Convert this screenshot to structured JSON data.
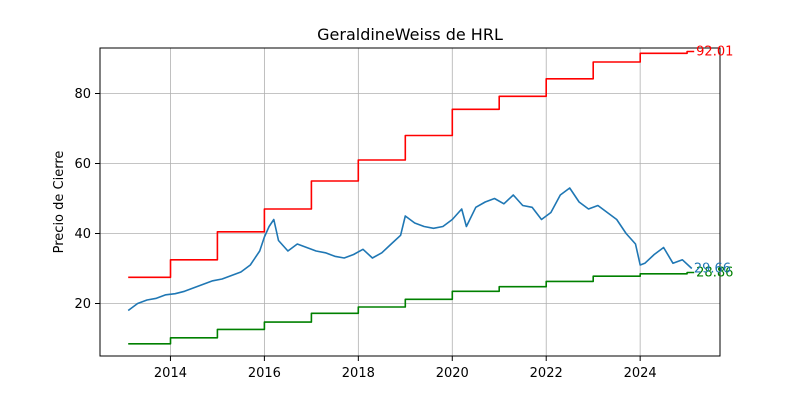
{
  "chart_data": {
    "type": "line",
    "title": "GeraldineWeiss de HRL",
    "xlabel": "",
    "ylabel": "Precio de Cierre",
    "xlim": [
      2012.5,
      2025.7
    ],
    "ylim": [
      5,
      93
    ],
    "x_ticks": [
      2014,
      2016,
      2018,
      2020,
      2022,
      2024
    ],
    "x_tick_labels": [
      "2014",
      "2016",
      "2018",
      "2020",
      "2022",
      "2024"
    ],
    "y_ticks": [
      20,
      40,
      60,
      80
    ],
    "y_tick_labels": [
      "20",
      "40",
      "60",
      "80"
    ],
    "grid": true,
    "legend": "none",
    "series": [
      {
        "key": "upper",
        "color": "#ff0000",
        "step": true,
        "x": [
          2013.1,
          2014.0,
          2015.0,
          2016.0,
          2017.0,
          2018.0,
          2019.0,
          2020.0,
          2021.0,
          2022.0,
          2023.0,
          2024.0,
          2025.0,
          2025.15
        ],
        "values": [
          27.5,
          32.5,
          40.5,
          47.0,
          55.0,
          61.0,
          68.0,
          75.5,
          79.2,
          84.2,
          89.0,
          91.5,
          92.01,
          92.01
        ],
        "end_label": "92.01"
      },
      {
        "key": "lower",
        "color": "#008000",
        "step": true,
        "x": [
          2013.1,
          2014.0,
          2015.0,
          2016.0,
          2017.0,
          2018.0,
          2019.0,
          2020.0,
          2021.0,
          2022.0,
          2023.0,
          2024.0,
          2025.0,
          2025.15
        ],
        "values": [
          8.5,
          10.2,
          12.6,
          14.7,
          17.2,
          19.0,
          21.2,
          23.5,
          24.8,
          26.3,
          27.8,
          28.5,
          28.86,
          28.86
        ],
        "end_label": "28.86"
      },
      {
        "key": "price",
        "color": "#1f77b4",
        "step": false,
        "x": [
          2013.1,
          2013.3,
          2013.5,
          2013.7,
          2013.9,
          2014.1,
          2014.3,
          2014.5,
          2014.7,
          2014.9,
          2015.1,
          2015.3,
          2015.5,
          2015.7,
          2015.9,
          2016.0,
          2016.1,
          2016.2,
          2016.3,
          2016.5,
          2016.7,
          2016.9,
          2017.1,
          2017.3,
          2017.5,
          2017.7,
          2017.9,
          2018.1,
          2018.3,
          2018.5,
          2018.7,
          2018.9,
          2019.0,
          2019.2,
          2019.4,
          2019.6,
          2019.8,
          2020.0,
          2020.2,
          2020.3,
          2020.5,
          2020.7,
          2020.9,
          2021.1,
          2021.3,
          2021.5,
          2021.7,
          2021.9,
          2022.1,
          2022.3,
          2022.5,
          2022.7,
          2022.9,
          2023.1,
          2023.3,
          2023.5,
          2023.7,
          2023.9,
          2024.0,
          2024.1,
          2024.3,
          2024.5,
          2024.7,
          2024.9,
          2025.1
        ],
        "values": [
          18.0,
          20.0,
          21.0,
          21.5,
          22.5,
          22.8,
          23.5,
          24.5,
          25.5,
          26.5,
          27.0,
          28.0,
          29.0,
          31.0,
          35.0,
          39.0,
          42.0,
          44.0,
          38.0,
          35.0,
          37.0,
          36.0,
          35.0,
          34.5,
          33.5,
          33.0,
          34.0,
          35.5,
          33.0,
          34.5,
          37.0,
          39.5,
          45.0,
          43.0,
          42.0,
          41.5,
          42.0,
          44.0,
          47.0,
          42.0,
          47.5,
          49.0,
          50.0,
          48.5,
          51.0,
          48.0,
          47.5,
          44.0,
          46.0,
          51.0,
          53.0,
          49.0,
          47.0,
          48.0,
          46.0,
          44.0,
          40.0,
          37.0,
          31.0,
          31.5,
          34.0,
          36.0,
          31.5,
          32.5,
          30.0
        ],
        "end_label": "29.66"
      }
    ]
  }
}
